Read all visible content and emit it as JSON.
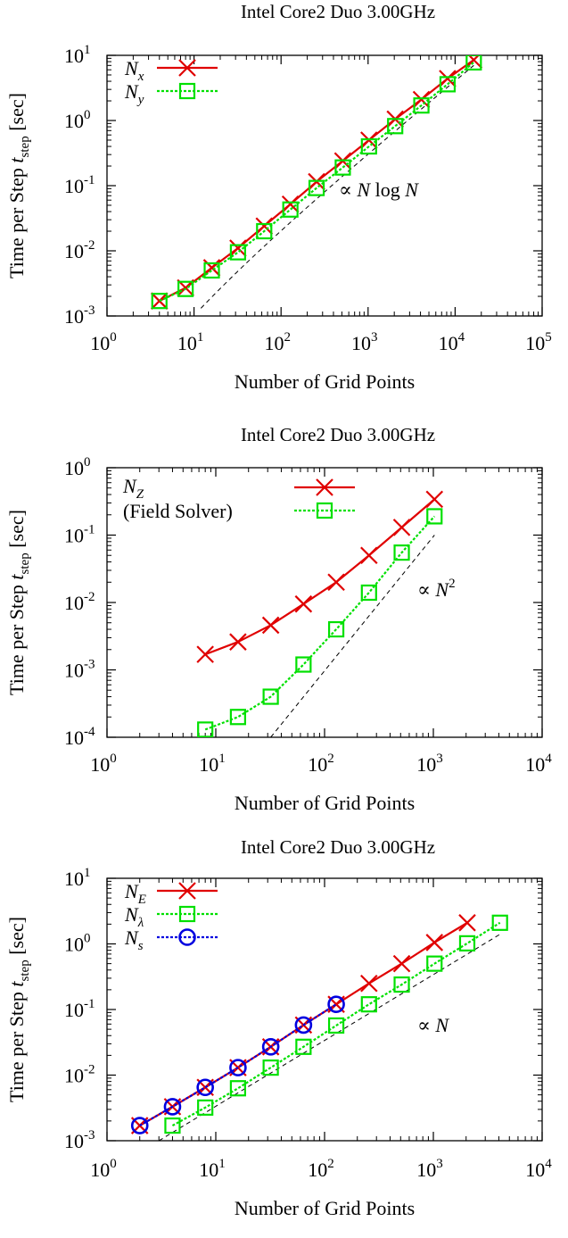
{
  "chart_data": [
    {
      "type": "line",
      "title": "Intel Core2 Duo 3.00GHz",
      "xlabel": "Number of Grid Points",
      "ylabel": "Time per Step t_step [sec]",
      "ylabel_main": "Time per Step ",
      "ylabel_var": "t",
      "ylabel_sub": "step",
      "ylabel_unit": " [sec]",
      "xscale": "log",
      "yscale": "log",
      "xlim": [
        1,
        100000
      ],
      "ylim": [
        0.001,
        10
      ],
      "x_ticks": [
        {
          "base": "10",
          "exp": "0"
        },
        {
          "base": "10",
          "exp": "1"
        },
        {
          "base": "10",
          "exp": "2"
        },
        {
          "base": "10",
          "exp": "3"
        },
        {
          "base": "10",
          "exp": "4"
        },
        {
          "base": "10",
          "exp": "5"
        }
      ],
      "y_ticks": [
        {
          "base": "10",
          "exp": "-3"
        },
        {
          "base": "10",
          "exp": "-2"
        },
        {
          "base": "10",
          "exp": "-1"
        },
        {
          "base": "10",
          "exp": "0"
        },
        {
          "base": "10",
          "exp": "1"
        }
      ],
      "legend_position": "top-left",
      "series": [
        {
          "name": "N_x",
          "label_main": "N",
          "label_sub": "x",
          "color": "#e00000",
          "marker": "cross",
          "dash": "solid",
          "x": [
            4,
            8,
            16,
            32,
            64,
            128,
            256,
            512,
            1024,
            2048,
            4096,
            8192,
            16384
          ],
          "y": [
            0.0017,
            0.0027,
            0.0055,
            0.011,
            0.024,
            0.052,
            0.115,
            0.24,
            0.5,
            1.05,
            2.1,
            4.4,
            8.5
          ]
        },
        {
          "name": "N_y",
          "label_main": "N",
          "label_sub": "y",
          "color": "#00e000",
          "marker": "square",
          "dash": "dotted",
          "x": [
            4,
            8,
            16,
            32,
            64,
            128,
            256,
            512,
            1024,
            2048,
            4096,
            8192,
            16384
          ],
          "y": [
            0.0017,
            0.0026,
            0.005,
            0.0095,
            0.02,
            0.043,
            0.092,
            0.19,
            0.4,
            0.82,
            1.7,
            3.6,
            7.8
          ]
        }
      ],
      "reference": {
        "label": "∝ N log N",
        "label_main": "∝ ",
        "label_var": "N",
        "label_rest": " log ",
        "label_var2": "N",
        "kind": "NlogN",
        "x": [
          12,
          16384
        ],
        "y": [
          0.0011,
          7.0
        ]
      }
    },
    {
      "type": "line",
      "title": "Intel Core2 Duo 3.00GHz",
      "xlabel": "Number of Grid Points",
      "ylabel": "Time per Step t_step [sec]",
      "ylabel_main": "Time per Step ",
      "ylabel_var": "t",
      "ylabel_sub": "step",
      "ylabel_unit": " [sec]",
      "xscale": "log",
      "yscale": "log",
      "xlim": [
        1,
        10000
      ],
      "ylim": [
        0.0001,
        1
      ],
      "x_ticks": [
        {
          "base": "10",
          "exp": "0"
        },
        {
          "base": "10",
          "exp": "1"
        },
        {
          "base": "10",
          "exp": "2"
        },
        {
          "base": "10",
          "exp": "3"
        },
        {
          "base": "10",
          "exp": "4"
        }
      ],
      "y_ticks": [
        {
          "base": "10",
          "exp": "-4"
        },
        {
          "base": "10",
          "exp": "-3"
        },
        {
          "base": "10",
          "exp": "-2"
        },
        {
          "base": "10",
          "exp": "-1"
        },
        {
          "base": "10",
          "exp": "0"
        }
      ],
      "legend_position": "top-left",
      "legend_note": "(Field Solver)",
      "series": [
        {
          "name": "N_Z",
          "label_main": "N",
          "label_sub": "Z",
          "color": "#e00000",
          "marker": "cross",
          "dash": "solid",
          "x": [
            8,
            16,
            32,
            64,
            128,
            256,
            512,
            1024
          ],
          "y": [
            0.0017,
            0.0026,
            0.0046,
            0.0095,
            0.02,
            0.05,
            0.13,
            0.34
          ]
        },
        {
          "name": "",
          "label_main": "",
          "label_sub": "",
          "color": "#00e000",
          "marker": "square",
          "dash": "dotted",
          "x": [
            8,
            16,
            32,
            64,
            128,
            256,
            512,
            1024
          ],
          "y": [
            0.00013,
            0.0002,
            0.0004,
            0.0012,
            0.004,
            0.014,
            0.055,
            0.19
          ]
        }
      ],
      "reference": {
        "label": "∝ N^2",
        "label_main": "∝ ",
        "label_var": "N",
        "label_sup": "2",
        "kind": "N2",
        "x": [
          32,
          1024
        ],
        "y": [
          0.0001,
          0.1
        ]
      }
    },
    {
      "type": "line",
      "title": "Intel Core2 Duo 3.00GHz",
      "xlabel": "Number of Grid Points",
      "ylabel": "Time per Step t_step [sec]",
      "ylabel_main": "Time per Step ",
      "ylabel_var": "t",
      "ylabel_sub": "step",
      "ylabel_unit": " [sec]",
      "xscale": "log",
      "yscale": "log",
      "xlim": [
        1,
        10000
      ],
      "ylim": [
        0.001,
        10
      ],
      "x_ticks": [
        {
          "base": "10",
          "exp": "0"
        },
        {
          "base": "10",
          "exp": "1"
        },
        {
          "base": "10",
          "exp": "2"
        },
        {
          "base": "10",
          "exp": "3"
        },
        {
          "base": "10",
          "exp": "4"
        }
      ],
      "y_ticks": [
        {
          "base": "10",
          "exp": "-3"
        },
        {
          "base": "10",
          "exp": "-2"
        },
        {
          "base": "10",
          "exp": "-1"
        },
        {
          "base": "10",
          "exp": "0"
        },
        {
          "base": "10",
          "exp": "1"
        }
      ],
      "legend_position": "top-left",
      "series": [
        {
          "name": "N_E",
          "label_main": "N",
          "label_sub": "E",
          "color": "#e00000",
          "marker": "cross",
          "dash": "solid",
          "x": [
            2,
            4,
            8,
            16,
            32,
            64,
            128,
            256,
            512,
            1024,
            2048
          ],
          "y": [
            0.0017,
            0.0033,
            0.0065,
            0.013,
            0.027,
            0.058,
            0.12,
            0.25,
            0.5,
            1.05,
            2.1
          ]
        },
        {
          "name": "N_λ",
          "label_main": "N",
          "label_sub": "λ",
          "color": "#00e000",
          "marker": "square",
          "dash": "dotted",
          "x": [
            4,
            8,
            16,
            32,
            64,
            128,
            256,
            512,
            1024,
            2048,
            4096
          ],
          "y": [
            0.0017,
            0.0032,
            0.0063,
            0.013,
            0.027,
            0.057,
            0.12,
            0.24,
            0.5,
            1.02,
            2.1
          ]
        },
        {
          "name": "N_s",
          "label_main": "N",
          "label_sub": "s",
          "color": "#0000e0",
          "marker": "circle",
          "dash": "dotted",
          "x": [
            2,
            4,
            8,
            16,
            32,
            64,
            128
          ],
          "y": [
            0.0017,
            0.0033,
            0.0065,
            0.013,
            0.027,
            0.058,
            0.12
          ]
        }
      ],
      "reference": {
        "label": "∝ N",
        "label_main": "∝ ",
        "label_var": "N",
        "kind": "N",
        "x": [
          3,
          4096
        ],
        "y": [
          0.001,
          1.4
        ]
      }
    }
  ]
}
